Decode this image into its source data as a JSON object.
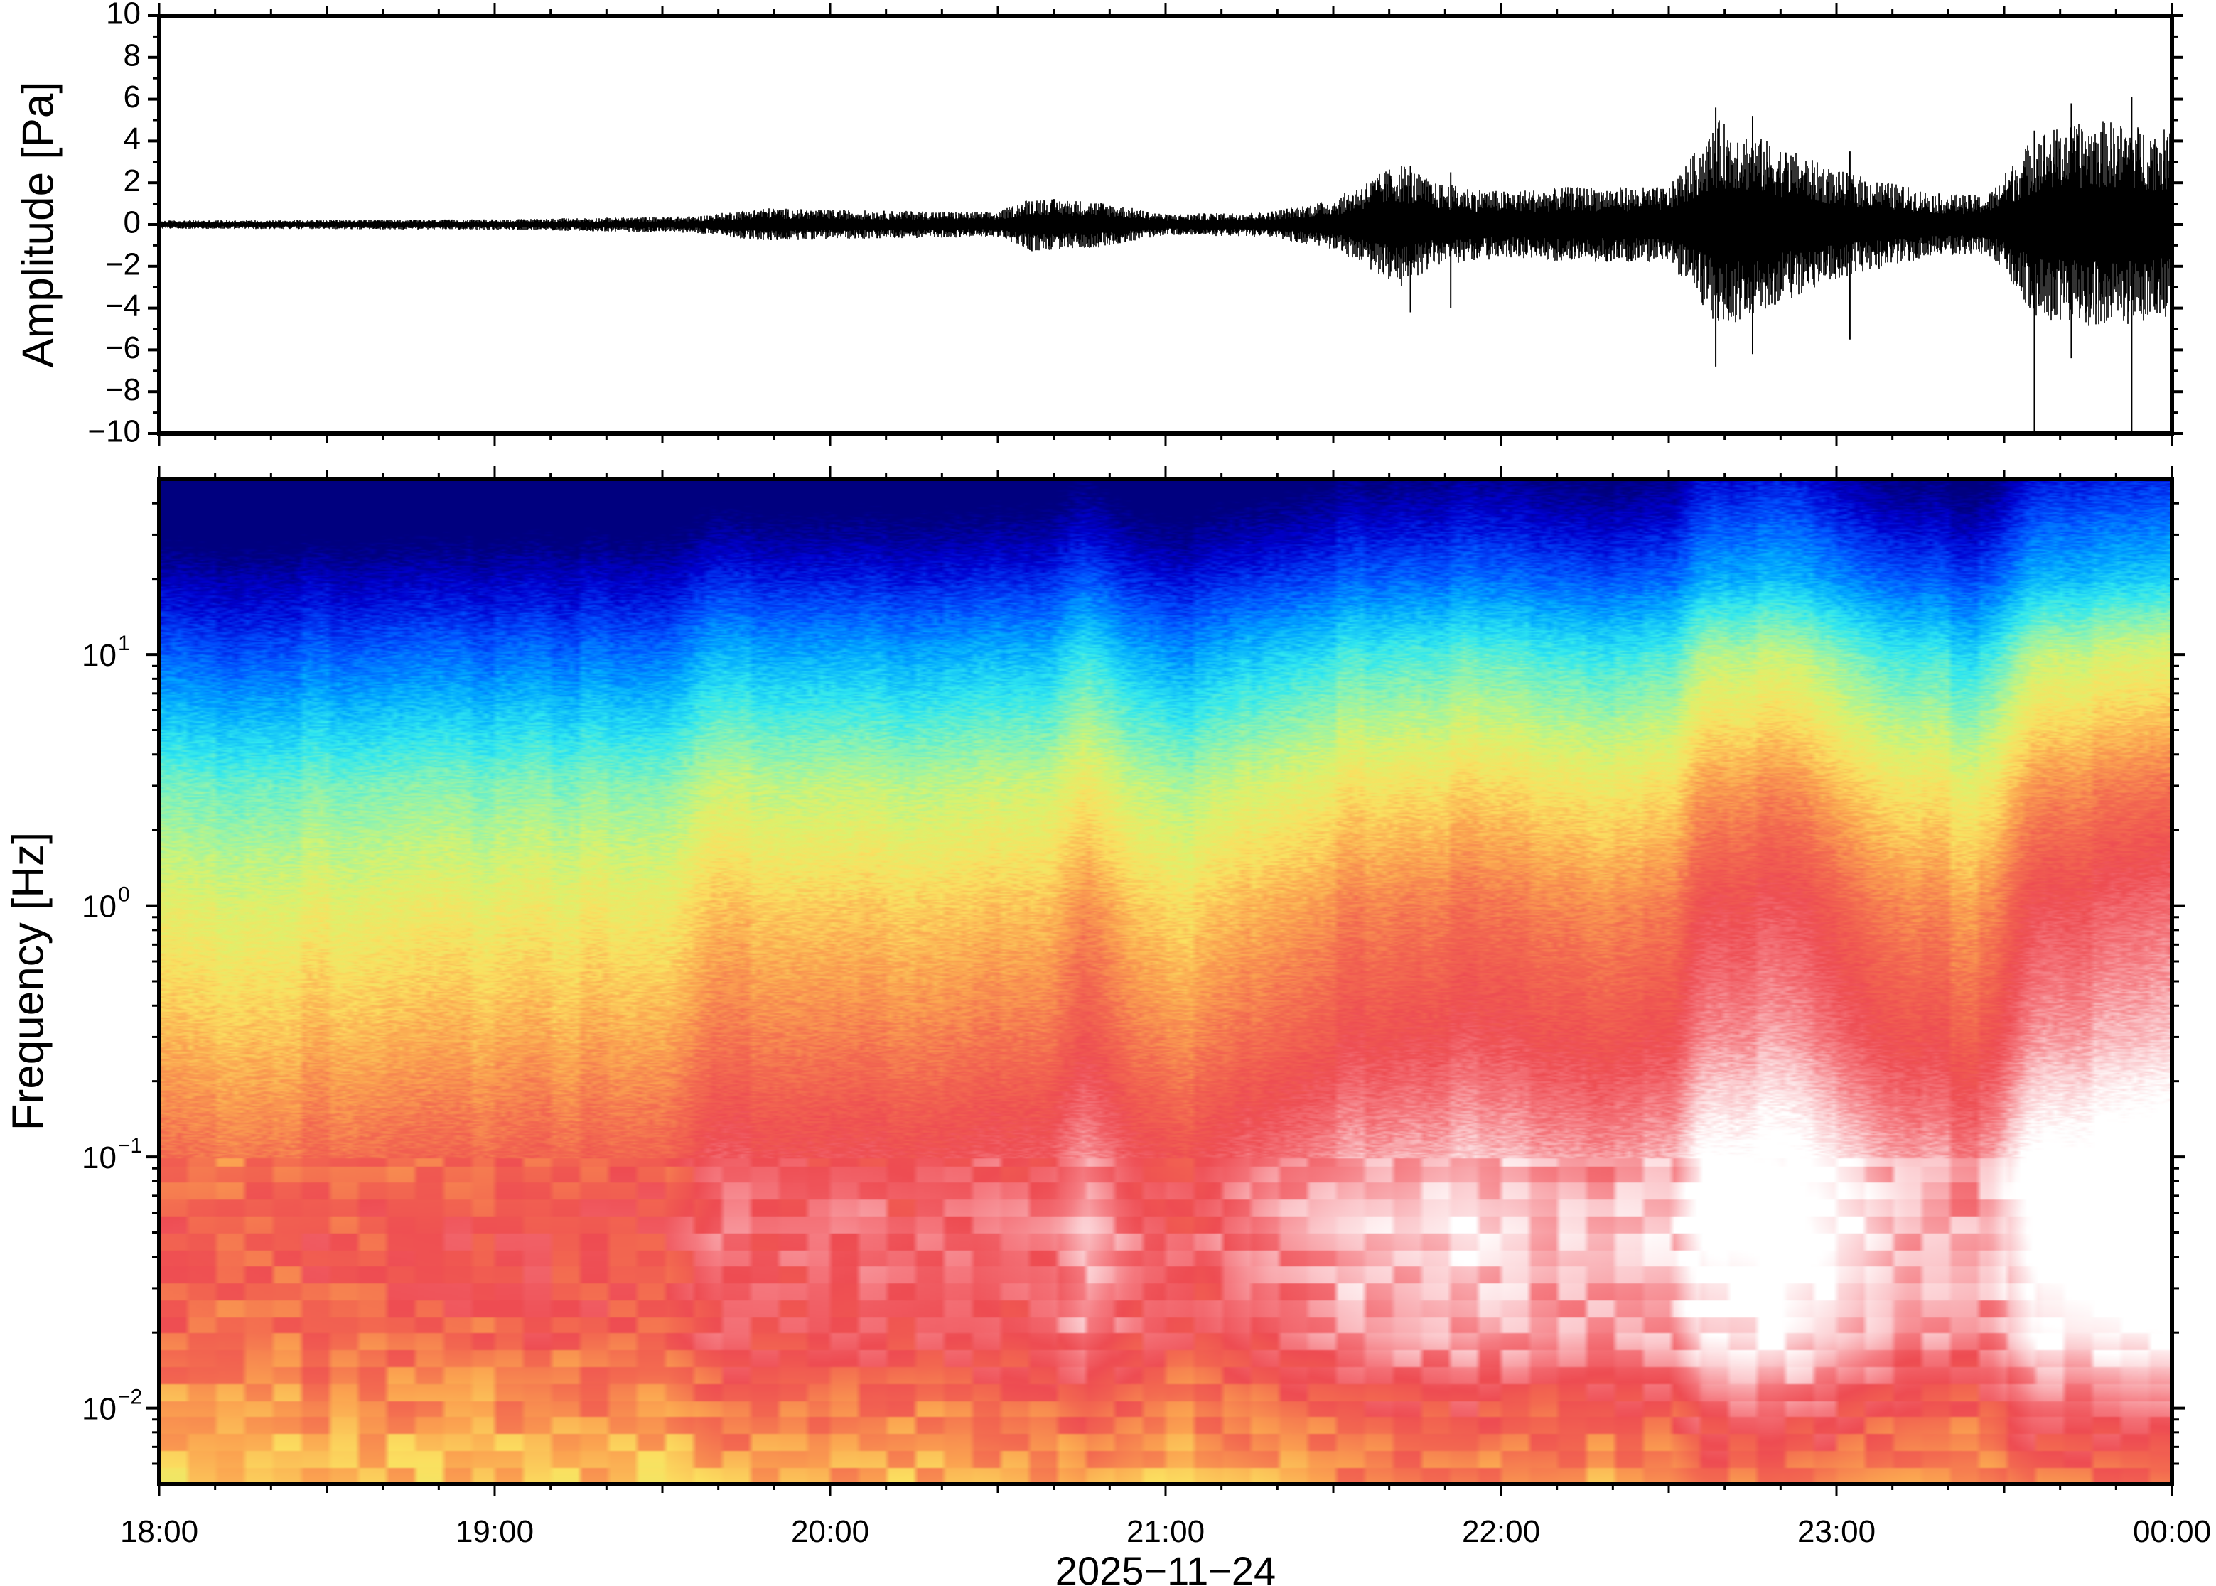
{
  "chart_data": [
    {
      "type": "line",
      "panel": "waveform",
      "ylabel": "Amplitude [Pa]",
      "ylim": [
        -10,
        10
      ],
      "yticks": [
        "10",
        "8",
        "6",
        "4",
        "2",
        "0",
        "−2",
        "−4",
        "−6",
        "−8",
        "−10"
      ],
      "ytick_values": [
        10,
        8,
        6,
        4,
        2,
        0,
        -2,
        -4,
        -6,
        -8,
        -10
      ],
      "x_range_hours": [
        18,
        24
      ],
      "envelope": {
        "time_hours": [
          18.0,
          19.0,
          19.6,
          19.8,
          20.0,
          20.5,
          20.6,
          20.8,
          21.0,
          21.3,
          21.5,
          21.7,
          21.8,
          22.0,
          22.2,
          22.5,
          22.65,
          22.8,
          23.0,
          23.3,
          23.45,
          23.6,
          23.8,
          24.0
        ],
        "half_range_pa": [
          0.2,
          0.25,
          0.4,
          0.8,
          0.7,
          0.6,
          1.3,
          1.1,
          0.5,
          0.6,
          1.2,
          3.0,
          2.0,
          1.6,
          1.8,
          1.8,
          5.0,
          4.0,
          2.6,
          1.5,
          1.4,
          4.5,
          5.0,
          4.5
        ]
      },
      "spikes": [
        {
          "time": 21.73,
          "max": 2.8,
          "min": -4.2
        },
        {
          "time": 21.85,
          "max": 2.5,
          "min": -4.0
        },
        {
          "time": 22.64,
          "max": 5.6,
          "min": -6.8
        },
        {
          "time": 22.75,
          "max": 5.2,
          "min": -6.2
        },
        {
          "time": 23.04,
          "max": 3.5,
          "min": -5.5
        },
        {
          "time": 23.59,
          "max": 4.5,
          "min": -9.9
        },
        {
          "time": 23.88,
          "max": 6.1,
          "min": -9.9
        },
        {
          "time": 23.7,
          "max": 5.8,
          "min": -6.4
        }
      ]
    },
    {
      "type": "heatmap",
      "panel": "spectrogram",
      "ylabel": "Frequency [Hz]",
      "yscale": "log",
      "ylim_hz": [
        0.005,
        50
      ],
      "yticks": [
        {
          "base": "10",
          "exp": "1",
          "value": 10
        },
        {
          "base": "10",
          "exp": "0",
          "value": 1
        },
        {
          "base": "10",
          "exp": "−1",
          "value": 0.1
        },
        {
          "base": "10",
          "exp": "−2",
          "value": 0.01
        }
      ],
      "xticks": [
        "18:00",
        "19:00",
        "20:00",
        "21:00",
        "22:00",
        "23:00",
        "00:00"
      ],
      "xtick_hours": [
        18,
        19,
        20,
        21,
        22,
        23,
        24
      ],
      "xlabel": "2025−11−24",
      "colormap": [
        "#00007f",
        "#0000d0",
        "#0050ff",
        "#00a8ff",
        "#30e8f0",
        "#8ff3b0",
        "#d9f36e",
        "#fbe060",
        "#fba250",
        "#f36a50",
        "#ee4c52",
        "#f57a80",
        "#fbc8cc",
        "#ffffff"
      ],
      "intensity_profile": {
        "time_hours": [
          18.0,
          18.5,
          19.0,
          19.5,
          19.65,
          20.0,
          20.4,
          20.65,
          20.75,
          20.9,
          21.1,
          21.3,
          21.6,
          21.9,
          22.2,
          22.5,
          22.6,
          22.8,
          23.0,
          23.2,
          23.45,
          23.6,
          24.0
        ],
        "level": [
          0.0,
          0.05,
          0.08,
          0.07,
          0.3,
          0.32,
          0.25,
          0.35,
          0.55,
          0.3,
          0.2,
          0.45,
          0.6,
          0.7,
          0.6,
          0.55,
          0.95,
          1.0,
          0.8,
          0.55,
          0.5,
          1.0,
          1.1
        ]
      },
      "frequency_profile": {
        "freq_hz": [
          0.005,
          0.01,
          0.02,
          0.05,
          0.1,
          0.3,
          1,
          3,
          10,
          20,
          50
        ],
        "base_value": [
          0.56,
          0.62,
          0.7,
          0.72,
          0.68,
          0.58,
          0.48,
          0.36,
          0.16,
          0.05,
          0.0
        ],
        "gain": [
          0.12,
          0.2,
          0.3,
          0.36,
          0.36,
          0.3,
          0.3,
          0.28,
          0.28,
          0.2,
          0.1
        ]
      }
    }
  ]
}
